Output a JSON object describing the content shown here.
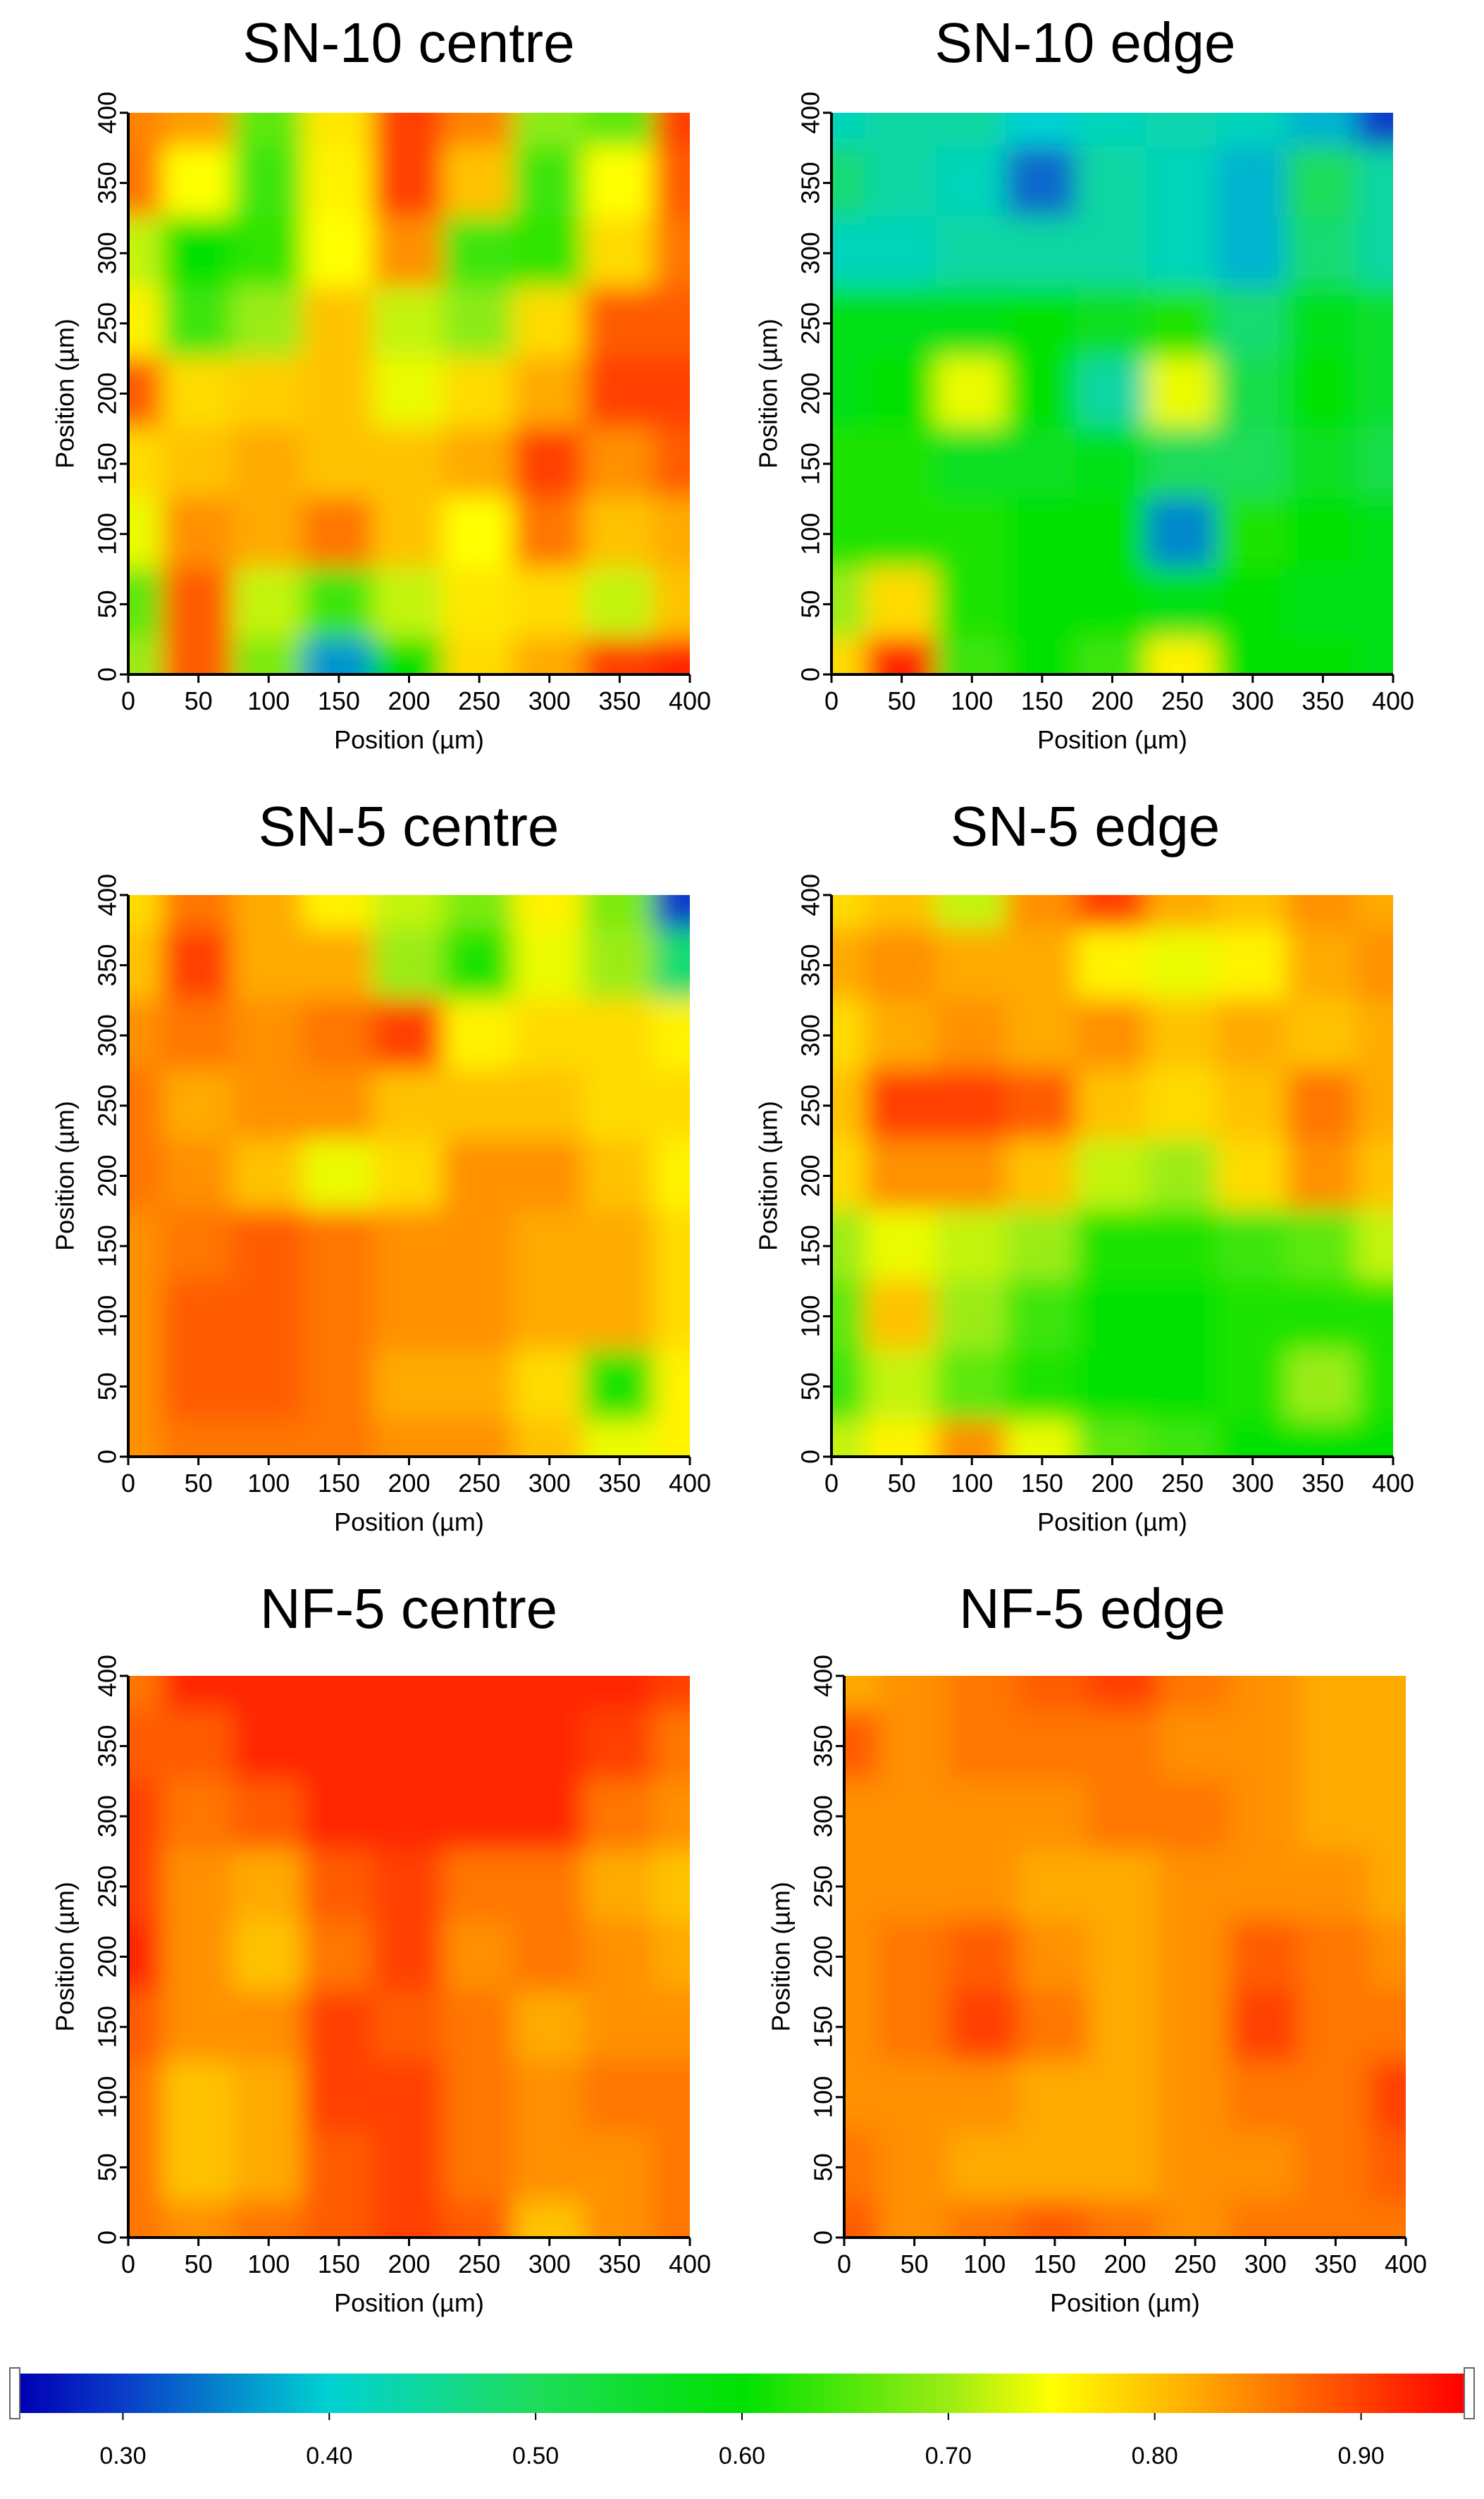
{
  "colorbar": {
    "ticks": [
      "0.30",
      "0.40",
      "0.50",
      "0.60",
      "0.70",
      "0.80",
      "0.90"
    ],
    "range": [
      0.25,
      0.95
    ],
    "stops": [
      {
        "v": 0.25,
        "color": "#0000b4"
      },
      {
        "v": 0.3,
        "color": "#0a3cc8"
      },
      {
        "v": 0.4,
        "color": "#00d2d2"
      },
      {
        "v": 0.5,
        "color": "#1edc5a"
      },
      {
        "v": 0.6,
        "color": "#00e100"
      },
      {
        "v": 0.7,
        "color": "#9bec14"
      },
      {
        "v": 0.75,
        "color": "#ffff00"
      },
      {
        "v": 0.82,
        "color": "#ffaa00"
      },
      {
        "v": 0.95,
        "color": "#ff0000"
      }
    ]
  },
  "chart_data": [
    {
      "type": "heatmap",
      "title": "SN-10 centre",
      "xlabel": "Position (µm)",
      "ylabel": "Position (µm)",
      "xlim": [
        0,
        400
      ],
      "ylim": [
        0,
        400
      ],
      "xticks": [
        "0",
        "50",
        "100",
        "150",
        "200",
        "250",
        "300",
        "350",
        "400"
      ],
      "yticks": [
        "0",
        "50",
        "100",
        "150",
        "200",
        "250",
        "300",
        "350",
        "400"
      ],
      "x": [
        0,
        50,
        100,
        150,
        200,
        250,
        300,
        350,
        400
      ],
      "y": [
        400,
        350,
        300,
        250,
        200,
        150,
        100,
        50,
        0
      ],
      "values": [
        [
          0.85,
          0.83,
          0.66,
          0.77,
          0.9,
          0.85,
          0.69,
          0.66,
          0.9
        ],
        [
          0.86,
          0.75,
          0.64,
          0.76,
          0.9,
          0.8,
          0.64,
          0.75,
          0.88
        ],
        [
          0.72,
          0.6,
          0.63,
          0.75,
          0.84,
          0.64,
          0.63,
          0.78,
          0.86
        ],
        [
          0.76,
          0.64,
          0.7,
          0.8,
          0.72,
          0.69,
          0.78,
          0.88,
          0.88
        ],
        [
          0.88,
          0.78,
          0.79,
          0.8,
          0.74,
          0.78,
          0.82,
          0.9,
          0.9
        ],
        [
          0.78,
          0.8,
          0.82,
          0.8,
          0.8,
          0.82,
          0.9,
          0.84,
          0.88
        ],
        [
          0.74,
          0.84,
          0.82,
          0.86,
          0.8,
          0.75,
          0.86,
          0.8,
          0.82
        ],
        [
          0.66,
          0.88,
          0.72,
          0.64,
          0.72,
          0.77,
          0.78,
          0.72,
          0.8
        ],
        [
          0.7,
          0.88,
          0.68,
          0.36,
          0.6,
          0.78,
          0.82,
          0.9,
          0.92
        ]
      ]
    },
    {
      "type": "heatmap",
      "title": "SN-10 edge",
      "xlabel": "Position (µm)",
      "ylabel": "Position (µm)",
      "xlim": [
        0,
        400
      ],
      "ylim": [
        0,
        400
      ],
      "xticks": [
        "0",
        "50",
        "100",
        "150",
        "200",
        "250",
        "300",
        "350",
        "400"
      ],
      "yticks": [
        "0",
        "50",
        "100",
        "150",
        "200",
        "250",
        "300",
        "350",
        "400"
      ],
      "x": [
        0,
        50,
        100,
        150,
        200,
        250,
        300,
        350,
        400
      ],
      "y": [
        400,
        350,
        300,
        250,
        200,
        150,
        100,
        50,
        0
      ],
      "values": [
        [
          0.42,
          0.44,
          0.44,
          0.4,
          0.42,
          0.43,
          0.42,
          0.38,
          0.3
        ],
        [
          0.48,
          0.44,
          0.42,
          0.33,
          0.44,
          0.42,
          0.38,
          0.5,
          0.44
        ],
        [
          0.42,
          0.42,
          0.44,
          0.44,
          0.44,
          0.42,
          0.38,
          0.48,
          0.44
        ],
        [
          0.58,
          0.58,
          0.58,
          0.6,
          0.56,
          0.62,
          0.48,
          0.58,
          0.55
        ],
        [
          0.58,
          0.6,
          0.74,
          0.6,
          0.44,
          0.74,
          0.52,
          0.6,
          0.55
        ],
        [
          0.62,
          0.62,
          0.56,
          0.56,
          0.58,
          0.5,
          0.5,
          0.56,
          0.52
        ],
        [
          0.62,
          0.62,
          0.62,
          0.6,
          0.6,
          0.35,
          0.62,
          0.6,
          0.58
        ],
        [
          0.7,
          0.78,
          0.62,
          0.6,
          0.6,
          0.58,
          0.6,
          0.58,
          0.58
        ],
        [
          0.78,
          0.92,
          0.64,
          0.6,
          0.64,
          0.76,
          0.6,
          0.6,
          0.58
        ]
      ]
    },
    {
      "type": "heatmap",
      "title": "SN-5 centre",
      "xlabel": "Position (µm)",
      "ylabel": "Position (µm)",
      "xlim": [
        0,
        400
      ],
      "ylim": [
        0,
        400
      ],
      "xticks": [
        "0",
        "50",
        "100",
        "150",
        "200",
        "250",
        "300",
        "350",
        "400"
      ],
      "yticks": [
        "0",
        "50",
        "100",
        "150",
        "200",
        "250",
        "300",
        "350",
        "400"
      ],
      "x": [
        0,
        50,
        100,
        150,
        200,
        250,
        300,
        350,
        400
      ],
      "y": [
        400,
        350,
        300,
        250,
        200,
        150,
        100,
        50,
        0
      ],
      "values": [
        [
          0.78,
          0.86,
          0.82,
          0.76,
          0.72,
          0.68,
          0.76,
          0.68,
          0.3
        ],
        [
          0.8,
          0.9,
          0.82,
          0.82,
          0.7,
          0.62,
          0.74,
          0.7,
          0.48
        ],
        [
          0.84,
          0.86,
          0.84,
          0.86,
          0.9,
          0.76,
          0.78,
          0.78,
          0.76
        ],
        [
          0.86,
          0.82,
          0.84,
          0.84,
          0.8,
          0.8,
          0.8,
          0.78,
          0.78
        ],
        [
          0.86,
          0.84,
          0.8,
          0.74,
          0.78,
          0.84,
          0.84,
          0.8,
          0.76
        ],
        [
          0.84,
          0.86,
          0.88,
          0.86,
          0.84,
          0.84,
          0.82,
          0.82,
          0.78
        ],
        [
          0.84,
          0.88,
          0.88,
          0.86,
          0.84,
          0.84,
          0.82,
          0.82,
          0.78
        ],
        [
          0.84,
          0.88,
          0.88,
          0.86,
          0.82,
          0.82,
          0.78,
          0.62,
          0.76
        ],
        [
          0.84,
          0.86,
          0.86,
          0.86,
          0.84,
          0.84,
          0.8,
          0.74,
          0.76
        ]
      ]
    },
    {
      "type": "heatmap",
      "title": "SN-5 edge",
      "xlabel": "Position (µm)",
      "ylabel": "Position (µm)",
      "xlim": [
        0,
        400
      ],
      "ylim": [
        0,
        400
      ],
      "xticks": [
        "0",
        "50",
        "100",
        "150",
        "200",
        "250",
        "300",
        "350",
        "400"
      ],
      "yticks": [
        "0",
        "50",
        "100",
        "150",
        "200",
        "250",
        "300",
        "350",
        "400"
      ],
      "x": [
        0,
        50,
        100,
        150,
        200,
        250,
        300,
        350,
        400
      ],
      "y": [
        400,
        350,
        300,
        250,
        200,
        150,
        100,
        50,
        0
      ],
      "values": [
        [
          0.78,
          0.8,
          0.72,
          0.84,
          0.9,
          0.82,
          0.8,
          0.84,
          0.82
        ],
        [
          0.82,
          0.84,
          0.82,
          0.82,
          0.76,
          0.74,
          0.76,
          0.82,
          0.84
        ],
        [
          0.78,
          0.82,
          0.84,
          0.82,
          0.84,
          0.8,
          0.82,
          0.8,
          0.82
        ],
        [
          0.8,
          0.9,
          0.9,
          0.88,
          0.8,
          0.78,
          0.8,
          0.86,
          0.82
        ],
        [
          0.78,
          0.84,
          0.84,
          0.8,
          0.72,
          0.7,
          0.78,
          0.84,
          0.8
        ],
        [
          0.7,
          0.74,
          0.72,
          0.7,
          0.62,
          0.62,
          0.64,
          0.66,
          0.72
        ],
        [
          0.66,
          0.8,
          0.7,
          0.64,
          0.6,
          0.6,
          0.62,
          0.62,
          0.62
        ],
        [
          0.64,
          0.72,
          0.66,
          0.62,
          0.6,
          0.6,
          0.62,
          0.7,
          0.62
        ],
        [
          0.72,
          0.76,
          0.84,
          0.74,
          0.66,
          0.64,
          0.6,
          0.6,
          0.6
        ]
      ]
    },
    {
      "type": "heatmap",
      "title": "NF-5 centre",
      "xlabel": "Position (µm)",
      "ylabel": "Position (µm)",
      "xlim": [
        0,
        400
      ],
      "ylim": [
        0,
        400
      ],
      "xticks": [
        "0",
        "50",
        "100",
        "150",
        "200",
        "250",
        "300",
        "350",
        "400"
      ],
      "yticks": [
        "0",
        "50",
        "100",
        "150",
        "200",
        "250",
        "300",
        "350",
        "400"
      ],
      "x": [
        0,
        50,
        100,
        150,
        200,
        250,
        300,
        350,
        400
      ],
      "y": [
        400,
        350,
        300,
        250,
        200,
        150,
        100,
        50,
        0
      ],
      "values": [
        [
          0.86,
          0.92,
          0.92,
          0.92,
          0.92,
          0.92,
          0.92,
          0.92,
          0.9
        ],
        [
          0.88,
          0.88,
          0.92,
          0.92,
          0.92,
          0.92,
          0.92,
          0.9,
          0.86
        ],
        [
          0.9,
          0.86,
          0.88,
          0.92,
          0.92,
          0.92,
          0.92,
          0.86,
          0.84
        ],
        [
          0.9,
          0.84,
          0.82,
          0.88,
          0.9,
          0.86,
          0.86,
          0.82,
          0.8
        ],
        [
          0.92,
          0.84,
          0.8,
          0.86,
          0.9,
          0.84,
          0.86,
          0.84,
          0.82
        ],
        [
          0.88,
          0.84,
          0.84,
          0.9,
          0.88,
          0.86,
          0.82,
          0.84,
          0.84
        ],
        [
          0.86,
          0.8,
          0.82,
          0.9,
          0.9,
          0.86,
          0.84,
          0.86,
          0.86
        ],
        [
          0.86,
          0.8,
          0.82,
          0.88,
          0.9,
          0.86,
          0.84,
          0.84,
          0.86
        ],
        [
          0.86,
          0.84,
          0.86,
          0.88,
          0.9,
          0.88,
          0.8,
          0.84,
          0.86
        ]
      ]
    },
    {
      "type": "heatmap",
      "title": "NF-5 edge",
      "xlabel": "Position (µm)",
      "ylabel": "Position (µm)",
      "xlim": [
        0,
        400
      ],
      "ylim": [
        0,
        400
      ],
      "xticks": [
        "0",
        "50",
        "100",
        "150",
        "200",
        "250",
        "300",
        "350",
        "400"
      ],
      "yticks": [
        "0",
        "50",
        "100",
        "150",
        "200",
        "250",
        "300",
        "350",
        "400"
      ],
      "x": [
        0,
        50,
        100,
        150,
        200,
        250,
        300,
        350,
        400
      ],
      "y": [
        400,
        350,
        300,
        250,
        200,
        150,
        100,
        50,
        0
      ],
      "values": [
        [
          0.82,
          0.84,
          0.86,
          0.88,
          0.9,
          0.86,
          0.84,
          0.82,
          0.82
        ],
        [
          0.88,
          0.84,
          0.86,
          0.86,
          0.86,
          0.84,
          0.84,
          0.82,
          0.82
        ],
        [
          0.84,
          0.84,
          0.84,
          0.84,
          0.86,
          0.86,
          0.84,
          0.82,
          0.82
        ],
        [
          0.84,
          0.84,
          0.84,
          0.82,
          0.82,
          0.84,
          0.84,
          0.84,
          0.82
        ],
        [
          0.84,
          0.86,
          0.88,
          0.84,
          0.82,
          0.84,
          0.88,
          0.86,
          0.84
        ],
        [
          0.84,
          0.86,
          0.9,
          0.86,
          0.82,
          0.84,
          0.9,
          0.86,
          0.86
        ],
        [
          0.84,
          0.84,
          0.84,
          0.82,
          0.82,
          0.84,
          0.86,
          0.86,
          0.9
        ],
        [
          0.86,
          0.84,
          0.82,
          0.82,
          0.82,
          0.84,
          0.84,
          0.86,
          0.88
        ],
        [
          0.88,
          0.84,
          0.86,
          0.88,
          0.86,
          0.84,
          0.86,
          0.86,
          0.86
        ]
      ]
    }
  ]
}
